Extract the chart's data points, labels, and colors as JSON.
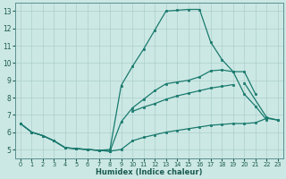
{
  "xlabel": "Humidex (Indice chaleur)",
  "bg_color": "#cce8e4",
  "grid_color": "#aacfcc",
  "line_color": "#1a7a6e",
  "xlim": [
    -0.5,
    23.5
  ],
  "ylim": [
    4.5,
    13.5
  ],
  "xticks": [
    0,
    1,
    2,
    3,
    4,
    5,
    6,
    7,
    8,
    9,
    10,
    11,
    12,
    13,
    14,
    15,
    16,
    17,
    18,
    19,
    20,
    21,
    22,
    23
  ],
  "yticks": [
    5,
    6,
    7,
    8,
    9,
    10,
    11,
    12,
    13
  ],
  "line1_x": [
    0,
    1,
    2,
    3,
    4,
    5,
    6,
    7,
    8,
    9,
    10,
    11,
    12,
    13,
    14,
    15,
    16,
    17,
    18,
    19,
    20,
    21,
    22
  ],
  "line1_y": [
    6.5,
    6.0,
    5.8,
    5.5,
    5.1,
    5.05,
    5.0,
    4.95,
    5.0,
    8.7,
    9.8,
    10.8,
    11.9,
    13.0,
    13.05,
    13.1,
    13.1,
    11.2,
    10.2,
    9.5,
    8.2,
    7.5,
    6.7
  ],
  "line2_x": [
    0,
    1,
    2,
    3,
    4,
    5,
    6,
    7,
    8,
    9,
    10,
    11,
    12,
    13,
    14,
    15,
    16,
    17,
    18,
    19,
    20,
    21
  ],
  "line2_y": [
    6.5,
    6.0,
    5.8,
    5.5,
    5.1,
    5.05,
    5.0,
    4.95,
    4.9,
    6.6,
    7.4,
    7.9,
    8.4,
    8.8,
    8.9,
    9.0,
    9.2,
    9.55,
    9.6,
    9.5,
    9.5,
    8.2
  ],
  "line3_x": [
    0,
    10,
    11,
    12,
    13,
    14,
    15,
    16,
    17,
    18,
    19,
    20,
    22,
    23
  ],
  "line3_y": [
    6.5,
    7.2,
    7.45,
    7.65,
    7.9,
    8.1,
    8.25,
    8.4,
    8.55,
    8.65,
    8.75,
    8.85,
    6.85,
    6.7
  ],
  "line4_x": [
    0,
    1,
    2,
    3,
    4,
    5,
    6,
    7,
    8,
    9,
    10,
    11,
    12,
    13,
    14,
    15,
    16,
    17,
    18,
    19,
    20,
    21,
    22,
    23
  ],
  "line4_y": [
    6.5,
    6.0,
    5.8,
    5.5,
    5.1,
    5.05,
    5.0,
    4.95,
    4.9,
    5.0,
    5.5,
    5.7,
    5.85,
    6.0,
    6.1,
    6.2,
    6.3,
    6.4,
    6.45,
    6.5,
    6.5,
    6.55,
    6.8,
    6.7
  ]
}
